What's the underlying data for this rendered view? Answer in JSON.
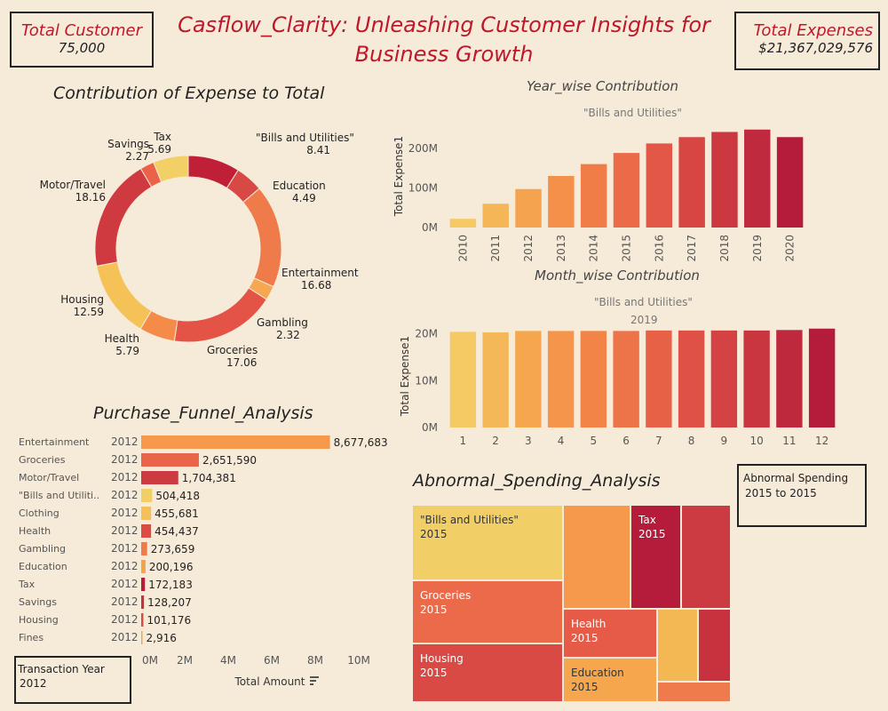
{
  "header": {
    "title": "Casflow_Clarity: Unleashing Customer Insights for Business Growth",
    "total_customer_label": "Total Customer",
    "total_customer_value": "75,000",
    "total_expenses_label": "Total Expenses",
    "total_expenses_value": "$21,367,029,576"
  },
  "colors": {
    "background": "#f6ead8",
    "title_red": "#c0182b",
    "palette": [
      "#f5c963",
      "#f5a94f",
      "#f48a48",
      "#eb6a48",
      "#dc4a45",
      "#c7343f",
      "#b51c3c"
    ]
  },
  "donut": {
    "title": "Contribution of Expense to Total"
  },
  "year_chart": {
    "title": "Year_wise Contribution",
    "subtitle": "\"Bills and Utilities\""
  },
  "month_chart": {
    "title": "Month_wise Contribution",
    "subtitle": "\"Bills and Utilities\"",
    "subtitle2": "2019"
  },
  "funnel": {
    "title": "Purchase_Funnel_Analysis",
    "axis_title": "Total Amount",
    "year": "2012"
  },
  "treemap": {
    "title": "Abnormal_Spending_Analysis",
    "cells": [
      {
        "category": "\"Bills and Utilities\"",
        "year": "2015"
      },
      {
        "category": "Tax",
        "year": "2015"
      },
      {
        "category": "Groceries",
        "year": "2015"
      },
      {
        "category": "Health",
        "year": "2015"
      },
      {
        "category": "Housing",
        "year": "2015"
      },
      {
        "category": "Education",
        "year": "2015"
      }
    ]
  },
  "filters": {
    "abnormal_label": "Abnormal Spending",
    "abnormal_value": "2015 to 2015",
    "transaction_label": "Transaction Year",
    "transaction_value": "2012"
  },
  "chart_data": [
    {
      "type": "pie",
      "title": "Contribution of Expense to Total",
      "categories": [
        "\"Bills and Utilities\"",
        "Education",
        "Entertainment",
        "Gambling",
        "Groceries",
        "Health",
        "Housing",
        "Motor/Travel",
        "Savings",
        "Tax"
      ],
      "values": [
        8.41,
        4.49,
        16.68,
        2.32,
        17.06,
        5.79,
        12.59,
        18.16,
        2.27,
        5.69
      ]
    },
    {
      "type": "bar",
      "title": "Year_wise Contribution",
      "subtitle": "\"Bills and Utilities\"",
      "ylabel": "Total Expense1",
      "categories": [
        "2010",
        "2011",
        "2012",
        "2013",
        "2014",
        "2015",
        "2016",
        "2017",
        "2018",
        "2019",
        "2020"
      ],
      "values": [
        22,
        60,
        97,
        130,
        160,
        188,
        212,
        228,
        241,
        247,
        228
      ],
      "yticks": [
        "0M",
        "100M",
        "200M"
      ],
      "ylim": [
        0,
        260
      ]
    },
    {
      "type": "bar",
      "title": "Month_wise Contribution",
      "subtitle": "\"Bills and Utilities\"",
      "ylabel": "Total Expense1",
      "categories": [
        "1",
        "2",
        "3",
        "4",
        "5",
        "6",
        "7",
        "8",
        "9",
        "10",
        "11",
        "12"
      ],
      "values": [
        20.4,
        20.3,
        20.6,
        20.6,
        20.6,
        20.6,
        20.7,
        20.7,
        20.7,
        20.7,
        20.8,
        21.1
      ],
      "yticks": [
        "0M",
        "10M",
        "20M"
      ],
      "ylim": [
        0,
        22
      ]
    },
    {
      "type": "bar",
      "title": "Purchase_Funnel_Analysis",
      "xlabel": "Total Amount",
      "categories": [
        "Entertainment",
        "Groceries",
        "Motor/Travel",
        "\"Bills and Utiliti..",
        "Clothing",
        "Health",
        "Gambling",
        "Education",
        "Tax",
        "Savings",
        "Housing",
        "Fines"
      ],
      "values": [
        8677683,
        2651590,
        1704381,
        504418,
        455681,
        454437,
        273659,
        200196,
        172183,
        128207,
        101176,
        2916
      ],
      "labels": [
        "8,677,683",
        "2,651,590",
        "1,704,381",
        "504,418",
        "455,681",
        "454,437",
        "273,659",
        "200,196",
        "172,183",
        "128,207",
        "101,176",
        "2,916"
      ],
      "xticks": [
        "0M",
        "2M",
        "4M",
        "6M",
        "8M",
        "10M"
      ],
      "xlim": [
        0,
        10000000
      ]
    }
  ]
}
